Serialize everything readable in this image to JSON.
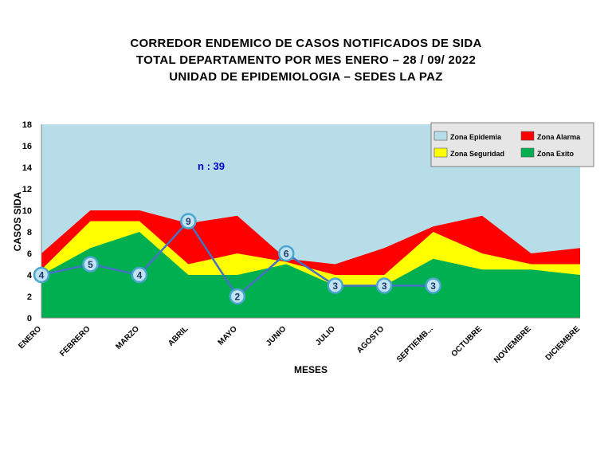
{
  "title_lines": [
    "CORREDOR  ENDEMICO  DE CASOS NOTIFICADOS  DE SIDA",
    "TOTAL DEPARTAMENTO  POR MES ENERO  – 28 / 09/ 2022",
    "UNIDAD  DE EPIDEMIOLOGIA  – SEDES LA PAZ"
  ],
  "annotation": "n : 39",
  "chart_data": {
    "type": "area",
    "categories": [
      "ENERO",
      "FEBRERO",
      "MARZO",
      "ABRIL",
      "MAYO",
      "JUNIO",
      "JULIO",
      "AGOSTO",
      "SEPTIEMB...",
      "OCTUBRE",
      "NOVIEMBRE",
      "DICIEMBRE"
    ],
    "xlabel": "MESES",
    "ylabel": "CASOS SIDA",
    "ylim": [
      0,
      18
    ],
    "yticks": [
      0,
      2,
      4,
      6,
      8,
      10,
      12,
      14,
      16,
      18
    ],
    "grid": false,
    "legend_position": "top-right",
    "series": [
      {
        "name": "Zona Exito",
        "color": "#00b050",
        "values": [
          4,
          6.5,
          8,
          4,
          4,
          5,
          3,
          3,
          5.5,
          4.5,
          4.5,
          4
        ]
      },
      {
        "name": "Zona Seguridad",
        "color": "#ffff00",
        "values": [
          4.5,
          9,
          9,
          5,
          6,
          5.2,
          4,
          4,
          8,
          6,
          5,
          5
        ]
      },
      {
        "name": "Zona Alarma",
        "color": "#ff0000",
        "values": [
          6,
          10,
          10,
          8.8,
          9.5,
          5.5,
          5,
          6.5,
          8.5,
          9.5,
          6,
          6.5
        ]
      },
      {
        "name": "Zona Epidemia",
        "color": "#b7dde8",
        "values": [
          18,
          18,
          18,
          18,
          18,
          18,
          18,
          18,
          18,
          18,
          18,
          18
        ]
      }
    ],
    "cases": {
      "color": "#4472c4",
      "values": [
        4,
        5,
        4,
        9,
        2,
        6,
        3,
        3,
        3
      ],
      "labels": [
        "4",
        "5",
        "4",
        "9",
        "2",
        "6",
        "3",
        "3",
        "3"
      ]
    }
  }
}
